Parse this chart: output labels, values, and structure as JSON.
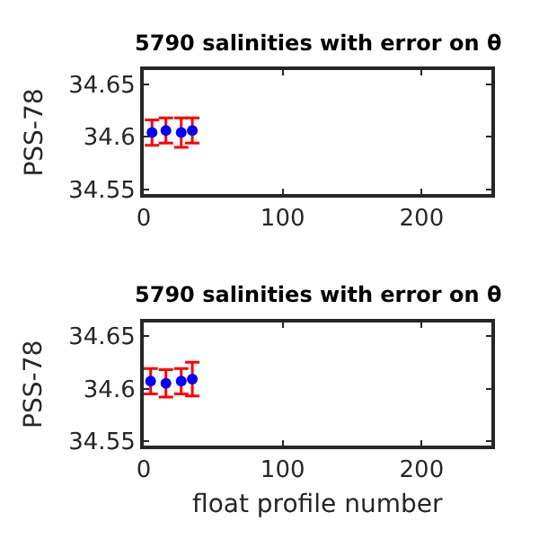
{
  "chart_data": [
    {
      "type": "scatter",
      "title": "5790 salinities with error on θ",
      "ylabel": "PSS-78",
      "xlim": [
        0,
        250
      ],
      "xticks": [
        0,
        100,
        200
      ],
      "ylim": [
        34.546,
        34.663
      ],
      "yticks": [
        34.55,
        34.6,
        34.65
      ],
      "marker": "circle",
      "x": [
        6,
        16,
        27,
        35
      ],
      "series": [
        {
          "color": "#0000ff",
          "values": [
            34.604,
            34.606,
            34.604,
            34.606
          ],
          "errors": [
            0.012,
            0.012,
            0.014,
            0.012
          ]
        }
      ]
    },
    {
      "type": "scatter",
      "title": "5790 salinities with error on θ",
      "xlabel": "float profile number",
      "ylabel": "PSS-78",
      "xlim": [
        0,
        250
      ],
      "xticks": [
        0,
        100,
        200
      ],
      "ylim": [
        34.546,
        34.663
      ],
      "yticks": [
        34.55,
        34.6,
        34.65
      ],
      "marker": "circle",
      "x": [
        5,
        16,
        27,
        35
      ],
      "series": [
        {
          "color": "#0000ff",
          "values": [
            34.607,
            34.605,
            34.607,
            34.609
          ],
          "errors": [
            0.012,
            0.013,
            0.012,
            0.016
          ]
        }
      ]
    }
  ]
}
